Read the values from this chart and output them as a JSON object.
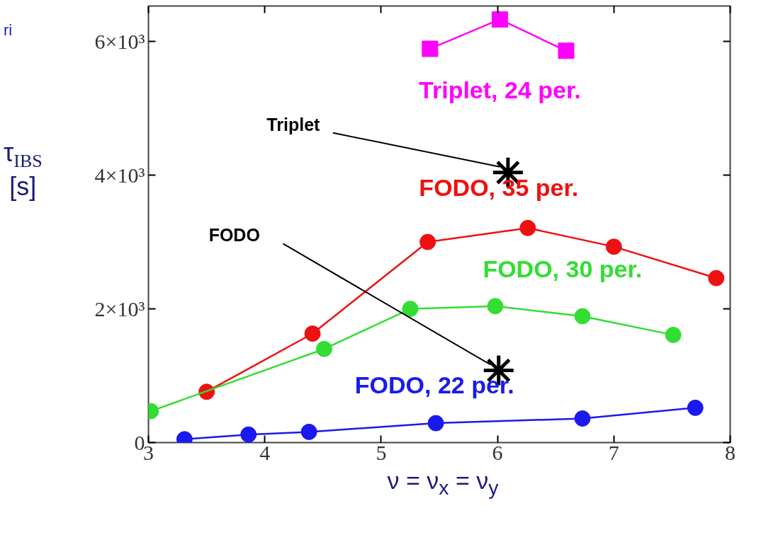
{
  "chart_data": {
    "type": "line",
    "xlabel": "ν = ν$_{x}$ = ν$_{y}$",
    "ylabel": "τ$_{IBS}$ [s]",
    "xlim": [
      3,
      8
    ],
    "ylim": [
      0,
      6530
    ],
    "xticks": [
      3,
      4,
      5,
      6,
      7,
      8
    ],
    "yticks": [
      0,
      {
        "value": 2000,
        "label": "2×10³"
      },
      {
        "value": 4000,
        "label": "4×10³"
      },
      {
        "value": 6000,
        "label": "6×10³"
      }
    ],
    "grid": false,
    "line_style": "solid",
    "series": [
      {
        "name": "Triplet, 24 per.",
        "color": "#ff00ff",
        "marker": "square",
        "x": [
          5.42,
          6.02,
          6.59
        ],
        "values": [
          5890,
          6330,
          5860
        ]
      },
      {
        "name": "FODO, 35 per.",
        "color": "#ee1111",
        "marker": "circle",
        "x": [
          3.5,
          4.41,
          5.4,
          6.26,
          7.0,
          7.88
        ],
        "values": [
          760,
          1630,
          3000,
          3210,
          2930,
          2460
        ]
      },
      {
        "name": "FODO, 30 per.",
        "color": "#33dd33",
        "marker": "circle",
        "x": [
          3.02,
          4.51,
          5.25,
          5.98,
          6.73,
          7.51
        ],
        "values": [
          470,
          1400,
          2000,
          2040,
          1890,
          1610
        ]
      },
      {
        "name": "FODO, 22 per.",
        "color": "#1a1aee",
        "marker": "circle",
        "x": [
          3.31,
          3.86,
          4.38,
          5.47,
          6.73,
          7.7
        ],
        "values": [
          50,
          120,
          160,
          290,
          360,
          520
        ]
      },
      {
        "type": "scatter",
        "color": "#000000",
        "marker": "cross",
        "x": [
          6.09,
          6.01
        ],
        "values": [
          4040,
          1080
        ]
      }
    ],
    "annotations": [
      "ri",
      "Triplet",
      "FODO"
    ]
  }
}
